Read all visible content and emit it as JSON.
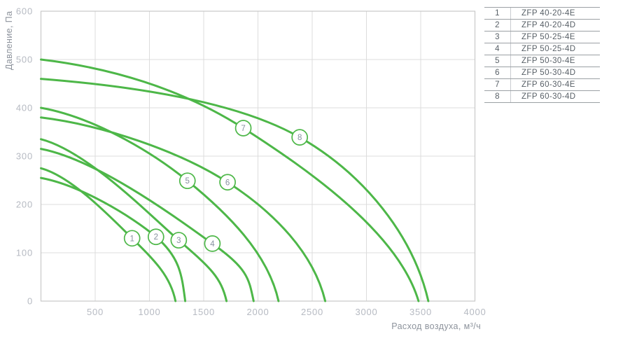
{
  "chart_data": {
    "type": "line",
    "title": "",
    "xlabel": "Расход воздуха, м³/ч",
    "ylabel": "Давление, Па",
    "xlim": [
      0,
      4000
    ],
    "ylim": [
      0,
      600
    ],
    "x_ticks": [
      0,
      500,
      1000,
      1500,
      2000,
      2500,
      3000,
      3500,
      4000
    ],
    "x_tick_labels": [
      "",
      "500",
      "1000",
      "1500",
      "2000",
      "2500",
      "3000",
      "3500",
      "4000"
    ],
    "y_ticks": [
      0,
      100,
      200,
      300,
      400,
      500,
      600
    ],
    "y_tick_labels": [
      "0",
      "100",
      "200",
      "300",
      "400",
      "500",
      "600"
    ],
    "grid": true,
    "legend_position": "right-table",
    "curve_color": "#4db748",
    "series": [
      {
        "label": "1",
        "name": "ZFP 40-20-4E",
        "points": [
          [
            0,
            275
          ],
          [
            840,
            130
          ],
          [
            1240,
            0
          ]
        ],
        "marker_at": [
          840,
          130
        ]
      },
      {
        "label": "2",
        "name": "ZFP 40-20-4D",
        "points": [
          [
            0,
            255
          ],
          [
            1060,
            133
          ],
          [
            1330,
            0
          ]
        ],
        "marker_at": [
          1060,
          133
        ]
      },
      {
        "label": "3",
        "name": "ZFP 50-25-4E",
        "points": [
          [
            0,
            335
          ],
          [
            1270,
            126
          ],
          [
            1710,
            0
          ]
        ],
        "marker_at": [
          1270,
          126
        ]
      },
      {
        "label": "4",
        "name": "ZFP 50-25-4D",
        "points": [
          [
            0,
            315
          ],
          [
            1580,
            119
          ],
          [
            1960,
            0
          ]
        ],
        "marker_at": [
          1580,
          119
        ]
      },
      {
        "label": "5",
        "name": "ZFP 50-30-4E",
        "points": [
          [
            0,
            400
          ],
          [
            1350,
            249
          ],
          [
            2190,
            0
          ]
        ],
        "marker_at": [
          1350,
          249
        ]
      },
      {
        "label": "6",
        "name": "ZFP 50-30-4D",
        "points": [
          [
            0,
            380
          ],
          [
            1720,
            246
          ],
          [
            2620,
            0
          ]
        ],
        "marker_at": [
          1720,
          246
        ]
      },
      {
        "label": "7",
        "name": "ZFP 60-30-4E",
        "points": [
          [
            0,
            500
          ],
          [
            1865,
            358
          ],
          [
            3480,
            0
          ]
        ],
        "marker_at": [
          1865,
          358
        ]
      },
      {
        "label": "8",
        "name": "ZFP 60-30-4D",
        "points": [
          [
            0,
            460
          ],
          [
            2385,
            339
          ],
          [
            3570,
            0
          ]
        ],
        "marker_at": [
          2385,
          339
        ]
      }
    ]
  },
  "legend": {
    "rows": [
      {
        "n": "1",
        "model": "ZFP 40-20-4E"
      },
      {
        "n": "2",
        "model": "ZFP 40-20-4D"
      },
      {
        "n": "3",
        "model": "ZFP 50-25-4E"
      },
      {
        "n": "4",
        "model": "ZFP 50-25-4D"
      },
      {
        "n": "5",
        "model": "ZFP 50-30-4E"
      },
      {
        "n": "6",
        "model": "ZFP 50-30-4D"
      },
      {
        "n": "7",
        "model": "ZFP 60-30-4E"
      },
      {
        "n": "8",
        "model": "ZFP 60-30-4D"
      }
    ]
  },
  "colors": {
    "curve_green": "#4db748",
    "grid_line": "#dcdcdc",
    "plot_border": "#c8c8c8",
    "tick_label": "#b6bac2",
    "axis_title": "#8d939c",
    "legend_text": "#575f66",
    "legend_line": "#9ba0a4",
    "legend_divider": "#c9ccd0",
    "marker_number": "#8791a0",
    "background": "#ffffff"
  }
}
